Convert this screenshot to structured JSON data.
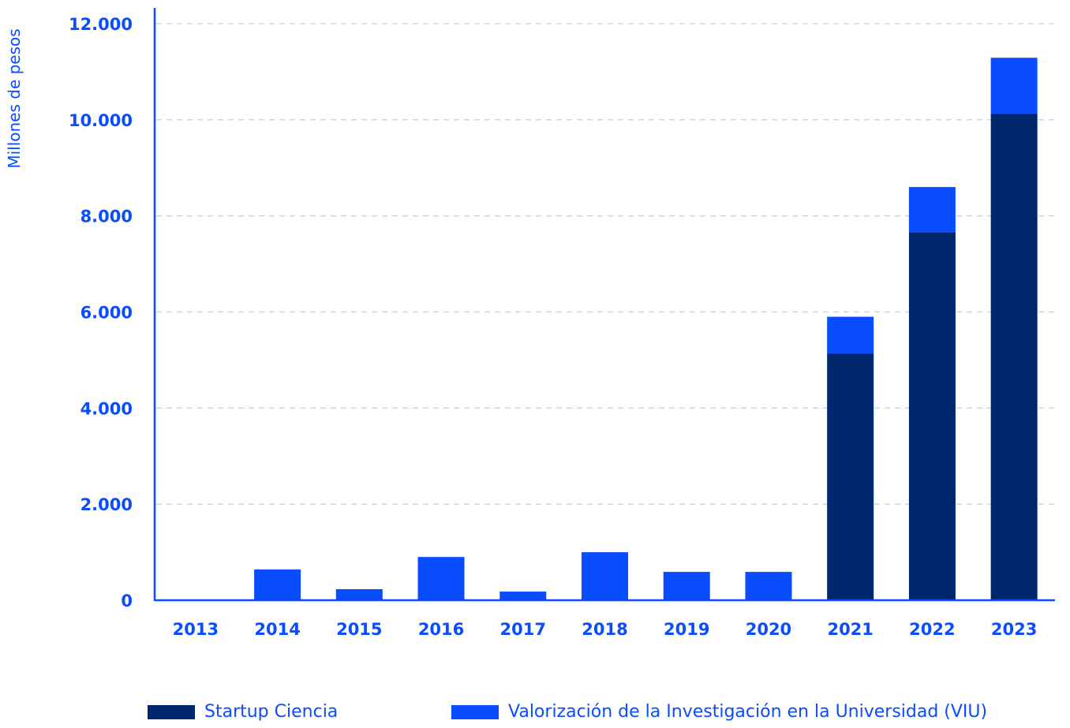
{
  "chart_data": {
    "type": "bar",
    "stacked": true,
    "ylabel": "Millones de pesos",
    "xlabel": "",
    "ylim": [
      0,
      12000
    ],
    "yticks": [
      "0",
      "2.000",
      "4.000",
      "6.000",
      "8.000",
      "10.000",
      "12.000"
    ],
    "ytick_values": [
      0,
      2000,
      4000,
      6000,
      8000,
      10000,
      12000
    ],
    "grid": true,
    "legend_position": "bottom",
    "categories": [
      "2013",
      "2014",
      "2015",
      "2016",
      "2017",
      "2018",
      "2019",
      "2020",
      "2021",
      "2022",
      "2023"
    ],
    "series": [
      {
        "name": "Startup Ciencia",
        "color": "#00266b",
        "values": [
          0,
          0,
          0,
          0,
          0,
          0,
          0,
          0,
          5130,
          7660,
          10120
        ]
      },
      {
        "name": "Valorización de la Investigación en la Universidad (VIU)",
        "color": "#0a4cff",
        "values": [
          0,
          640,
          230,
          900,
          180,
          1000,
          590,
          590,
          770,
          940,
          1170
        ]
      }
    ]
  },
  "colors": {
    "axis": "#0a4cff",
    "grid": "#b8d6f0"
  }
}
